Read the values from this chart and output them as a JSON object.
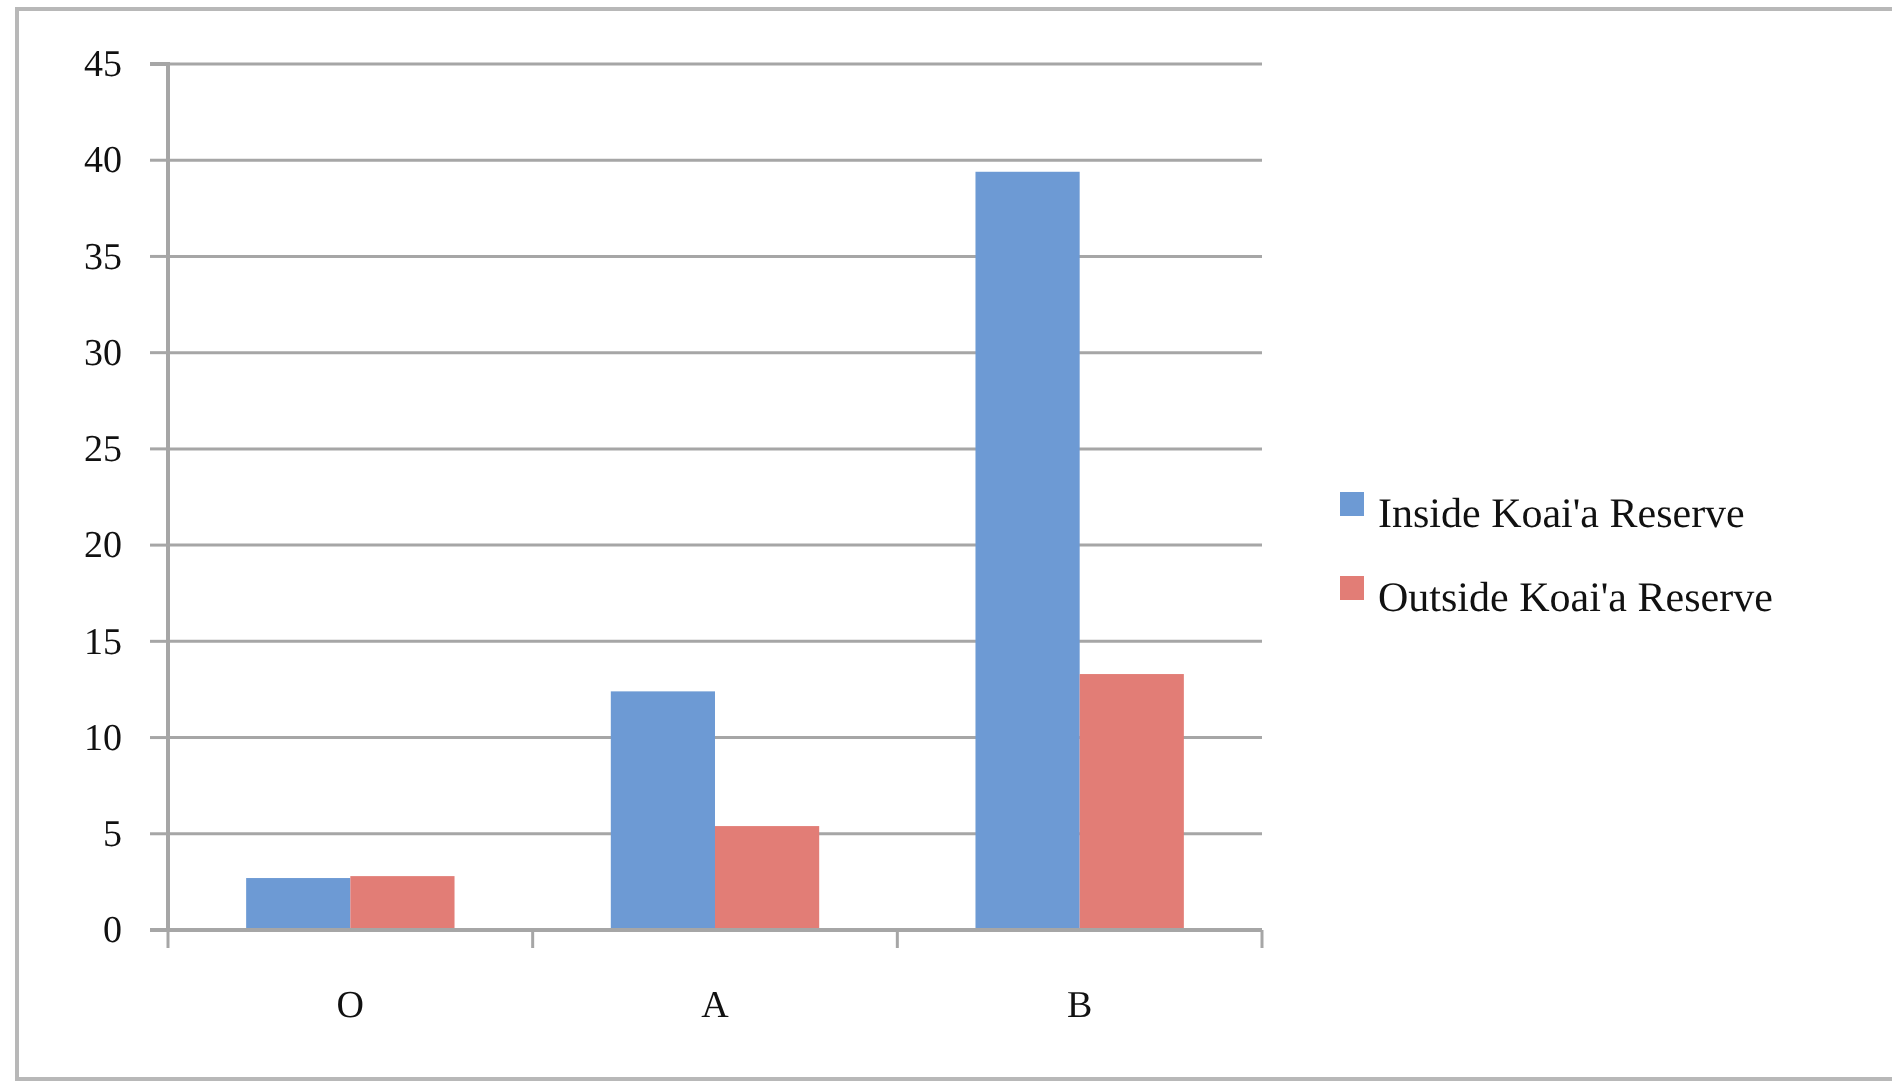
{
  "chart_data": {
    "type": "bar",
    "categories": [
      "O",
      "A",
      "B"
    ],
    "series": [
      {
        "name": "Inside Koai'a Reserve",
        "color": "#6d9ad4",
        "values": [
          2.7,
          12.4,
          39.4
        ]
      },
      {
        "name": "Outside Koai'a Reserve",
        "color": "#e27d76",
        "values": [
          2.8,
          5.4,
          13.3
        ]
      }
    ],
    "ylim": [
      0,
      45
    ],
    "yticks": [
      0,
      5,
      10,
      15,
      20,
      25,
      30,
      35,
      40,
      45
    ],
    "grid": "y",
    "legend": "right"
  }
}
